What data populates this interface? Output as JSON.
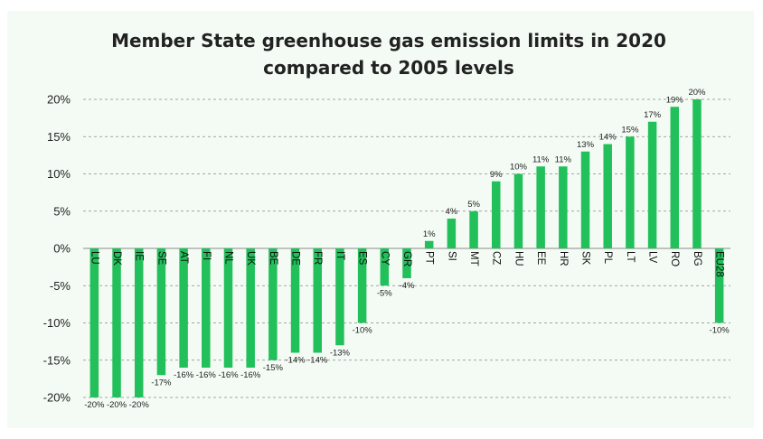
{
  "chart_data": {
    "type": "bar",
    "title_lines": [
      "Member State greenhouse gas emission limits in 2020",
      "compared to 2005 levels"
    ],
    "categories": [
      "LU",
      "DK",
      "IE",
      "SE",
      "AT",
      "FI",
      "NL",
      "UK",
      "BE",
      "DE",
      "FR",
      "IT",
      "ES",
      "CY",
      "GR",
      "PT",
      "SI",
      "MT",
      "CZ",
      "HU",
      "EE",
      "HR",
      "SK",
      "PL",
      "LT",
      "LV",
      "RO",
      "BG",
      "EU28"
    ],
    "values": [
      -20,
      -20,
      -20,
      -17,
      -16,
      -16,
      -16,
      -16,
      -15,
      -14,
      -14,
      -13,
      -10,
      -5,
      -4,
      1,
      4,
      5,
      9,
      10,
      11,
      11,
      13,
      14,
      15,
      17,
      19,
      20,
      -10
    ],
    "data_labels": [
      "-20%",
      "-20%",
      "-20%",
      "-17%",
      "-16%",
      "-16%",
      "-16%",
      "-16%",
      "-15%",
      "-14%",
      "-14%",
      "-13%",
      "-10%",
      "-5%",
      "-4%",
      "1%",
      "4%",
      "5%",
      "9%",
      "10%",
      "11%",
      "11%",
      "13%",
      "14%",
      "15%",
      "17%",
      "19%",
      "20%",
      "-10%"
    ],
    "y_ticks": [
      20,
      15,
      10,
      5,
      0,
      -5,
      -10,
      -15,
      -20
    ],
    "y_tick_labels": [
      "20%",
      "15%",
      "10%",
      "5%",
      "0%",
      "-5%",
      "-10%",
      "-15%",
      "-20%"
    ],
    "ylim": [
      -20,
      20
    ],
    "bar_color": "#22c05a",
    "grid": true,
    "legend": "none",
    "xlabel": "",
    "ylabel": ""
  }
}
